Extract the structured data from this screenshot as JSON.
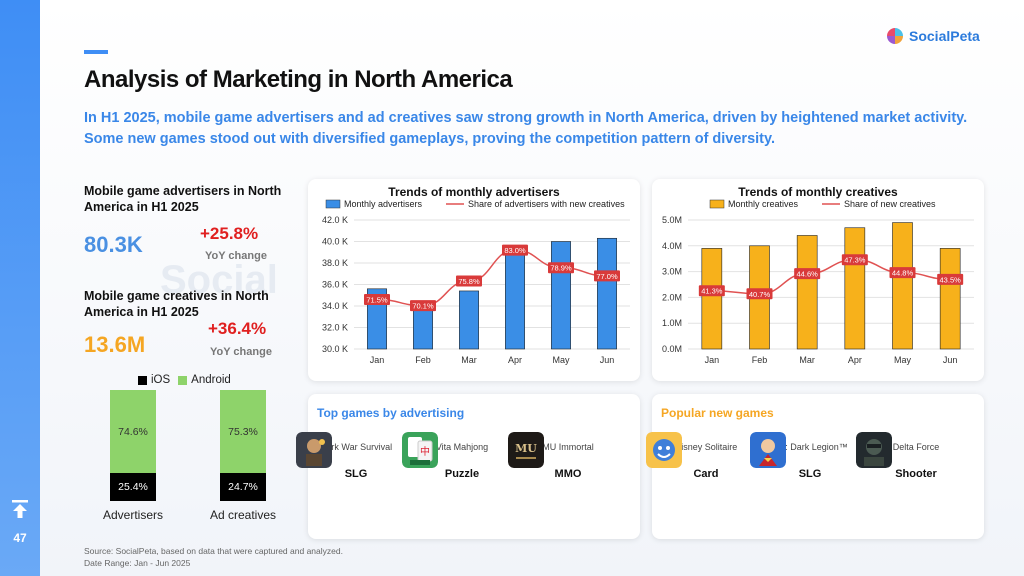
{
  "page": {
    "title": "Analysis of Marketing in North America",
    "subtitle": "In H1 2025, mobile game advertisers and ad creatives saw strong growth in North America, driven by heightened market activity. Some new games stood out with diversified gameplays, proving the competition pattern of diversity.",
    "page_number": "47",
    "watermark": "Social"
  },
  "logo": {
    "text": "SocialPeta"
  },
  "stats": {
    "advertisers": {
      "label": "Mobile game advertisers in North America in H1 2025",
      "value": "80.3K",
      "change": "+25.8%",
      "change_label": "YoY change",
      "color": "#4a90e2"
    },
    "creatives": {
      "label": "Mobile game creatives in North America in H1 2025",
      "value": "13.6M",
      "change": "+36.4%",
      "change_label": "YoY change",
      "color": "#f5a623"
    }
  },
  "platform_split": {
    "legend": {
      "ios": "iOS",
      "android": "Android"
    },
    "colors": {
      "ios": "#000000",
      "android": "#8ed36a"
    },
    "bars": [
      {
        "label": "Advertisers",
        "android": "74.6%",
        "ios": "25.4%",
        "android_value": 74.6
      },
      {
        "label": "Ad creatives",
        "android": "75.3%",
        "ios": "24.7%",
        "android_value": 75.3
      }
    ]
  },
  "chart_data": [
    {
      "type": "bar",
      "title": "Trends of monthly advertisers",
      "categories": [
        "Jan",
        "Feb",
        "Mar",
        "Apr",
        "May",
        "Jun"
      ],
      "series": [
        {
          "name": "Monthly advertisers",
          "kind": "bar",
          "values": [
            35.6,
            33.9,
            35.4,
            39.4,
            40.0,
            40.3
          ],
          "color": "#3a8ee6"
        },
        {
          "name": "Share of advertisers with new creatives",
          "kind": "line",
          "values": [
            71.5,
            70.1,
            75.8,
            83.0,
            78.9,
            77.0
          ],
          "labels": [
            "71.5%",
            "70.1%",
            "75.8%",
            "83.0%",
            "78.9%",
            "77.0%"
          ],
          "color": "#e05252"
        }
      ],
      "ylim": [
        30,
        42
      ],
      "yticks": [
        "30.0 K",
        "32.0 K",
        "34.0 K",
        "36.0 K",
        "38.0 K",
        "40.0 K",
        "42.0 K"
      ],
      "line_range": [
        60,
        90
      ]
    },
    {
      "type": "bar",
      "title": "Trends of monthly creatives",
      "categories": [
        "Jan",
        "Feb",
        "Mar",
        "Apr",
        "May",
        "Jun"
      ],
      "series": [
        {
          "name": "Monthly creatives",
          "kind": "bar",
          "values": [
            3.9,
            4.0,
            4.4,
            4.7,
            4.9,
            3.9
          ],
          "color": "#f7b11b"
        },
        {
          "name": "Share of new creatives",
          "kind": "line",
          "values": [
            41.3,
            40.7,
            44.6,
            47.3,
            44.8,
            43.5
          ],
          "labels": [
            "41.3%",
            "40.7%",
            "44.6%",
            "47.3%",
            "44.8%",
            "43.5%"
          ],
          "color": "#e05252"
        }
      ],
      "ylim": [
        0,
        5
      ],
      "yticks": [
        "0.0M",
        "1.0M",
        "2.0M",
        "3.0M",
        "4.0M",
        "5.0M"
      ],
      "line_range": [
        30,
        55
      ]
    }
  ],
  "top_games": {
    "title": "Top games by advertising",
    "color": "#3a87e8",
    "games": [
      {
        "name": "Dark War Survival",
        "genre": "SLG",
        "icon": "dark-war-survival-icon"
      },
      {
        "name": "Vita Mahjong",
        "genre": "Puzzle",
        "icon": "vita-mahjong-icon"
      },
      {
        "name": "MU Immortal",
        "genre": "MMO",
        "icon": "mu-immortal-icon"
      }
    ]
  },
  "new_games": {
    "title": "Popular new games",
    "color": "#f5a623",
    "games": [
      {
        "name": "Disney Solitaire",
        "genre": "Card",
        "icon": "disney-solitaire-icon"
      },
      {
        "name": "DC: Dark Legion™",
        "genre": "SLG",
        "icon": "dc-dark-legion-icon"
      },
      {
        "name": "Delta Force",
        "genre": "Shooter",
        "icon": "delta-force-icon"
      }
    ]
  },
  "source": {
    "line1": "Source: SocialPeta, based on data that were captured and analyzed.",
    "line2": "Date Range: Jan - Jun 2025"
  }
}
